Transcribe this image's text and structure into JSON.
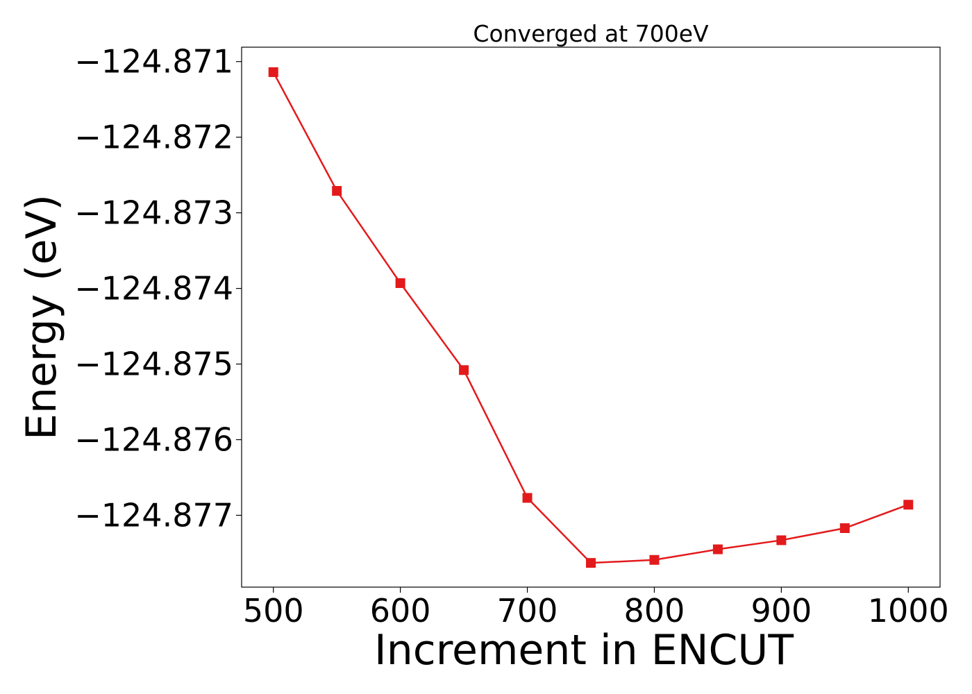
{
  "chart_data": {
    "type": "line",
    "title": "Converged at 700eV",
    "xlabel": "Increment in ENCUT",
    "ylabel": "Energy (eV)",
    "xlim": [
      475,
      1025
    ],
    "ylim": [
      -124.87795,
      -124.87081
    ],
    "x_ticks": [
      500,
      600,
      700,
      800,
      900,
      1000
    ],
    "x_tick_labels": [
      "500",
      "600",
      "700",
      "800",
      "900",
      "1000"
    ],
    "y_ticks": [
      -124.871,
      -124.872,
      -124.873,
      -124.874,
      -124.875,
      -124.876,
      -124.877
    ],
    "y_tick_labels": [
      "−124.871",
      "−124.872",
      "−124.873",
      "−124.874",
      "−124.875",
      "−124.876",
      "−124.877"
    ],
    "grid": false,
    "series": [
      {
        "color": "#e31a1c",
        "marker": "square",
        "x": [
          500,
          550,
          600,
          650,
          700,
          750,
          800,
          850,
          900,
          950,
          1000
        ],
        "y": [
          -124.87114,
          -124.87271,
          -124.87393,
          -124.87508,
          -124.87677,
          -124.87763,
          -124.87759,
          -124.87745,
          -124.87733,
          -124.87717,
          -124.87686
        ]
      }
    ]
  }
}
